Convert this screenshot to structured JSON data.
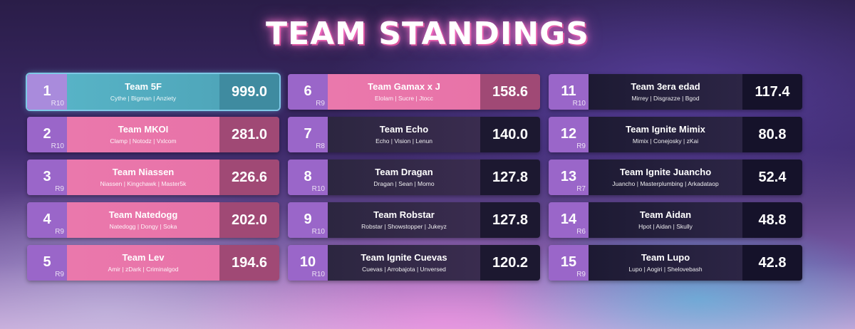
{
  "title": "TEAM STANDINGS",
  "teams": [
    {
      "rank": "1",
      "round": "R10",
      "name": "Team 5F",
      "players": "Cythe | Bigman | Anziety",
      "score": "999.0"
    },
    {
      "rank": "6",
      "round": "R9",
      "name": "Team Gamax x J",
      "players": "Elolam | Sucre | Jtocc",
      "score": "158.6"
    },
    {
      "rank": "11",
      "round": "R10",
      "name": "Team 3era edad",
      "players": "Mirrey | Disgrazze | Bgod",
      "score": "117.4"
    },
    {
      "rank": "2",
      "round": "R10",
      "name": "Team MKOI",
      "players": "Clamp | Notodz | Vxlcom",
      "score": "281.0"
    },
    {
      "rank": "7",
      "round": "R8",
      "name": "Team Echo",
      "players": "Echo | Vision | Lenun",
      "score": "140.0"
    },
    {
      "rank": "12",
      "round": "R9",
      "name": "Team Ignite Mimix",
      "players": "Mimix | Conejosky | zKai",
      "score": "80.8"
    },
    {
      "rank": "3",
      "round": "R9",
      "name": "Team Niassen",
      "players": "Niassen | Kingchawk | Master5k",
      "score": "226.6"
    },
    {
      "rank": "8",
      "round": "R10",
      "name": "Team Dragan",
      "players": "Dragan | Sean | Momo",
      "score": "127.8"
    },
    {
      "rank": "13",
      "round": "R7",
      "name": "Team Ignite Juancho",
      "players": "Juancho | Masterplumbing | Arkadataop",
      "score": "52.4"
    },
    {
      "rank": "4",
      "round": "R9",
      "name": "Team Natedogg",
      "players": "Natedogg | Dongy | Soka",
      "score": "202.0"
    },
    {
      "rank": "9",
      "round": "R10",
      "name": "Team Robstar",
      "players": "Robstar | Showstopper | Jukeyz",
      "score": "127.8"
    },
    {
      "rank": "14",
      "round": "R6",
      "name": "Team Aidan",
      "players": "Hpot | Aidan | Skully",
      "score": "48.8"
    },
    {
      "rank": "5",
      "round": "R9",
      "name": "Team Lev",
      "players": "Amir | zDark | Criminalgod",
      "score": "194.6"
    },
    {
      "rank": "10",
      "round": "R10",
      "name": "Team Ignite Cuevas",
      "players": "Cuevas | Arrobajota | Unversed",
      "score": "120.2"
    },
    {
      "rank": "15",
      "round": "R9",
      "name": "Team Lupo",
      "players": "Lupo | Aogiri | Shelovebash",
      "score": "42.8"
    }
  ]
}
